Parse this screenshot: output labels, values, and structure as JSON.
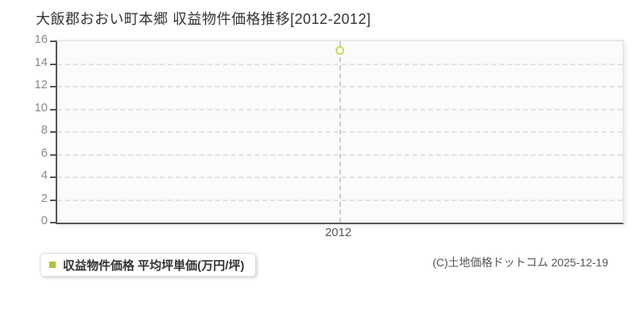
{
  "page": {
    "title": "大飯郡おおい町本郷 収益物件価格推移[2012-2012]",
    "copyright": "(C)土地価格ドットコム 2025-12-19"
  },
  "legend": {
    "label": "収益物件価格 平均坪単価(万円/坪)",
    "marker_color": "#a6c832"
  },
  "chart_data": {
    "type": "scatter",
    "title": "大飯郡おおい町本郷 収益物件価格推移[2012-2012]",
    "x": [
      2012
    ],
    "series": [
      {
        "name": "収益物件価格 平均坪単価(万円/坪)",
        "values": [
          15.2
        ]
      }
    ],
    "xlabel": "",
    "ylabel": "",
    "ylim": [
      0,
      16
    ],
    "yticks": [
      0,
      2,
      4,
      6,
      8,
      10,
      12,
      14,
      16
    ],
    "grid": "horizontal-dashed",
    "guide": "vertical-dashed-at-each-x",
    "legend_position": "bottom-left",
    "marker_style": "hollow-circle",
    "colors": {
      "marker": "#c9dc52",
      "legend_square": "#a6c832",
      "axis": "#555555",
      "gridline": "#e2e2e2",
      "guide_line": "#cccccc",
      "plot_bg": "#fbfbfb",
      "title_text": "#333333",
      "tick_label": "#888888"
    }
  }
}
